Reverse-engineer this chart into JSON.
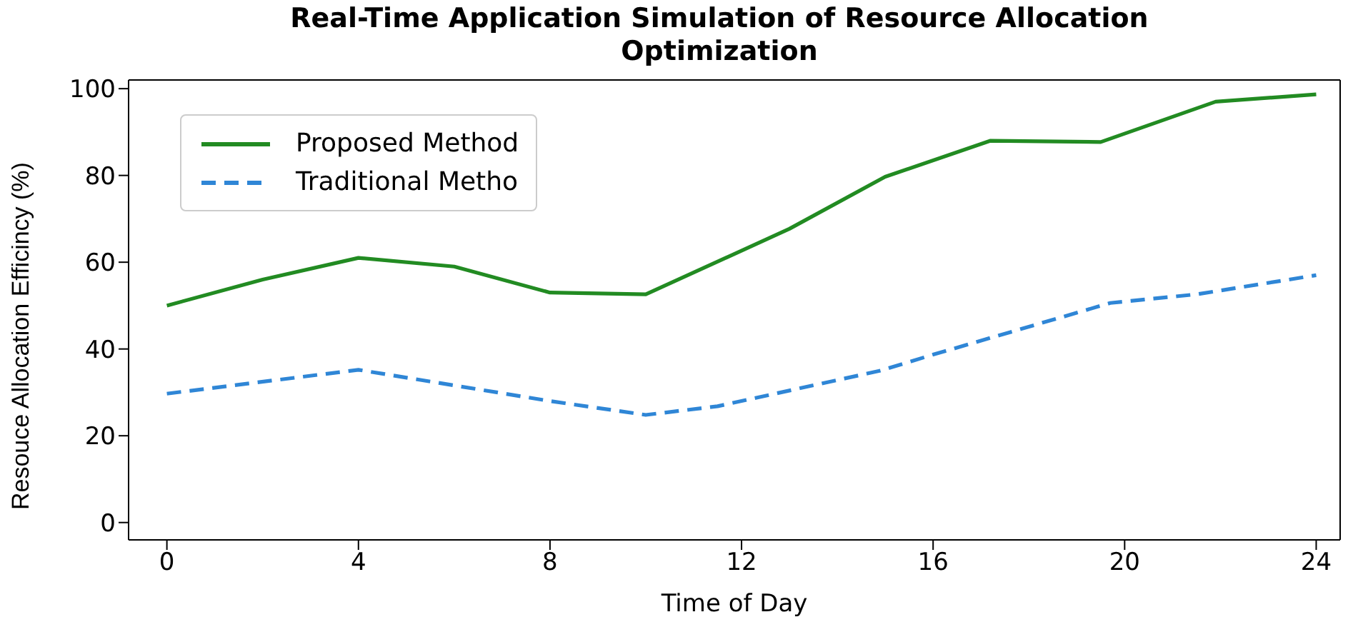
{
  "chart_data": {
    "type": "line",
    "title": "Real-Time Application Simulation of Resource Allocation\nOptimization",
    "xlabel": "Time of Day",
    "ylabel": "Resouce Allocation Efficincy (%)",
    "series": [
      {
        "name": "Proposed Method",
        "color": "#228b22",
        "line_style": "solid",
        "x": [
          0,
          2,
          4,
          6,
          8,
          10,
          13,
          15,
          17.2,
          19.5,
          21.9,
          24
        ],
        "values": [
          50,
          56,
          61,
          59,
          53,
          52.6,
          67.7,
          79.7,
          88,
          87.7,
          97,
          98.7
        ]
      },
      {
        "name": "Traditional Metho",
        "color": "#2f86d6",
        "line_style": "dashed",
        "x": [
          0,
          4,
          8,
          10,
          11.5,
          14.9,
          16,
          19.7,
          21.5,
          24
        ],
        "values": [
          29.7,
          35.2,
          28,
          24.8,
          26.8,
          35,
          38.7,
          50.6,
          52.6,
          57
        ]
      }
    ],
    "xlim": [
      -0.8,
      24.5
    ],
    "xticks": [
      0,
      4,
      8,
      12,
      16,
      20,
      24
    ],
    "ylim": [
      -4,
      102
    ],
    "yticks": [
      0,
      20,
      40,
      60,
      80,
      100
    ],
    "legend": "top left",
    "marker": "none"
  }
}
